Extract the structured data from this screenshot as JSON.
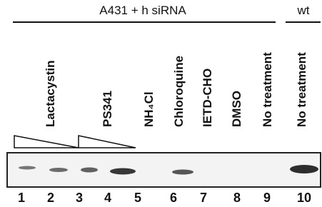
{
  "header": {
    "group": "A431 + h siRNA",
    "wt": "wt"
  },
  "treatments": [
    "Lactacystin",
    "PS341",
    "NH₄Cl",
    "Chloroquine",
    "IETD-CHO",
    "DMSO",
    "No treatment",
    "No treatment"
  ],
  "lanes": [
    "1",
    "2",
    "3",
    "4",
    "5",
    "6",
    "7",
    "8",
    "9",
    "10"
  ]
}
